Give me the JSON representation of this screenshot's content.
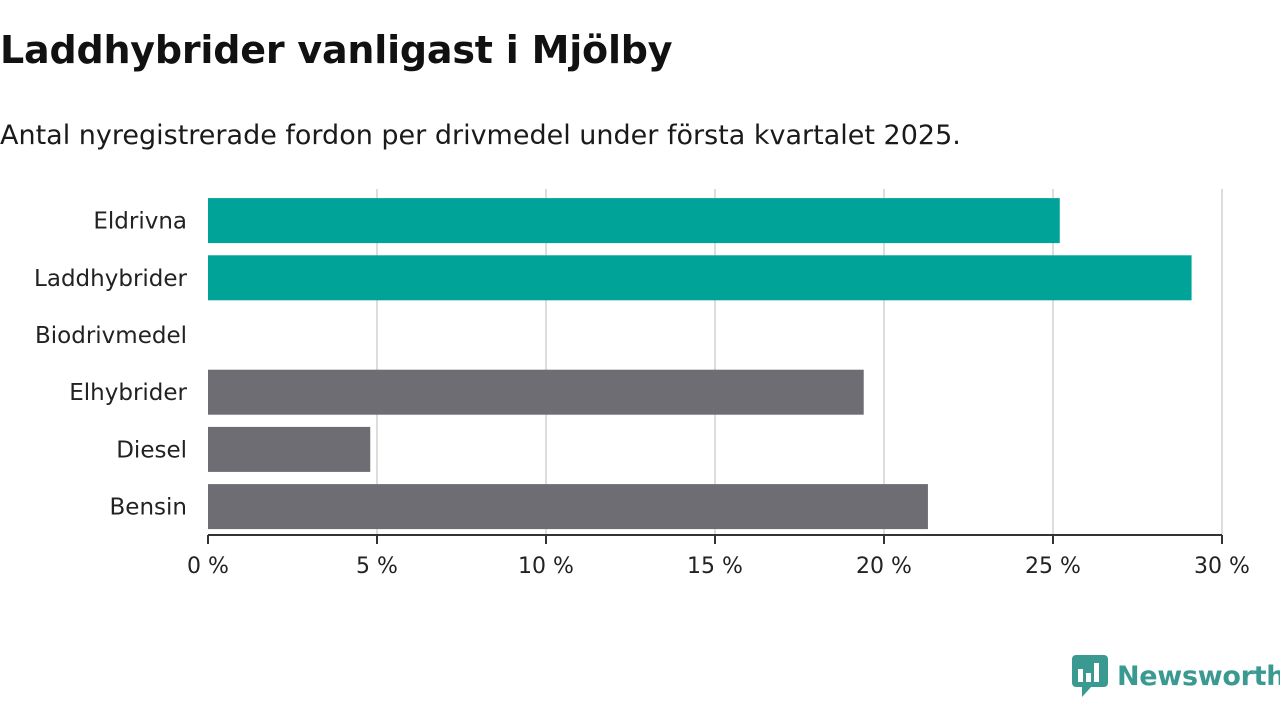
{
  "title": "Laddhybrider vanligast i Mjölby",
  "subtitle": "Antal nyregistrerade fordon per drivmedel under första kvartalet 2025.",
  "brand": {
    "name": "Newsworthy",
    "icon": "newsworthy-chart-logo-icon",
    "color": "#3a9a92"
  },
  "colors": {
    "highlight": "#00a398",
    "default": "#6e6d73",
    "grid": "#dddddd",
    "axis": "#333333"
  },
  "chart_data": {
    "type": "bar",
    "orientation": "horizontal",
    "title": "Laddhybrider vanligast i Mjölby",
    "subtitle": "Antal nyregistrerade fordon per drivmedel under första kvartalet 2025.",
    "categories": [
      "Eldrivna",
      "Laddhybrider",
      "Biodrivmedel",
      "Elhybrider",
      "Diesel",
      "Bensin"
    ],
    "values": [
      25.2,
      29.1,
      0,
      19.4,
      4.8,
      21.3
    ],
    "highlighted": [
      true,
      true,
      false,
      false,
      false,
      false
    ],
    "xlim": [
      0,
      30
    ],
    "xticks": [
      0,
      5,
      10,
      15,
      20,
      25,
      30
    ],
    "xtick_labels": [
      "0 %",
      "5 %",
      "10 %",
      "15 %",
      "20 %",
      "25 %",
      "30 %"
    ],
    "xlabel": "",
    "ylabel": "",
    "grid": "vertical",
    "legend": "none"
  }
}
